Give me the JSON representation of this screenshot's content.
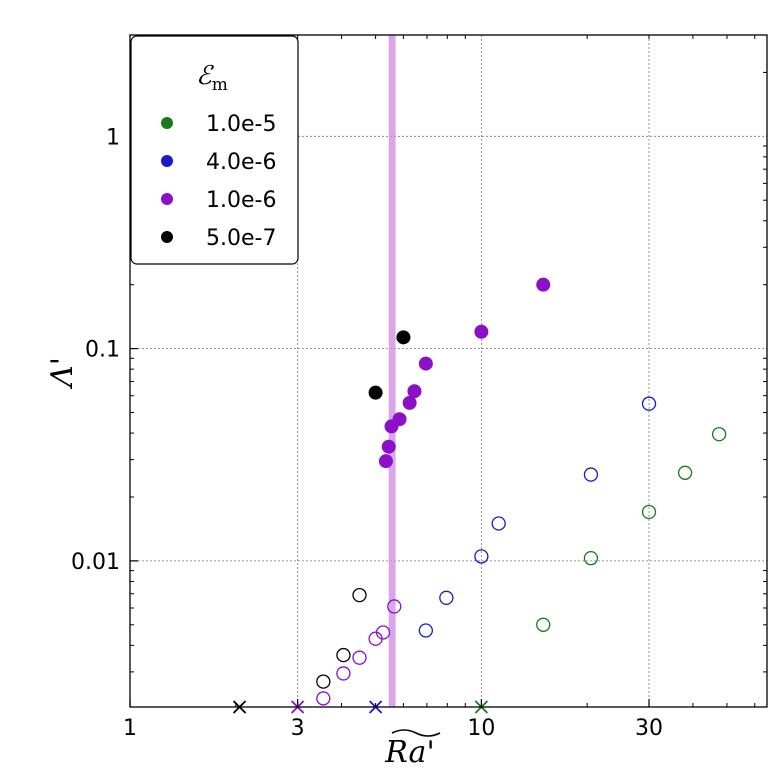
{
  "chart_data": {
    "type": "scatter",
    "xlabel": "Ra'",
    "ylabel": "Λ'",
    "x_scale": "log",
    "y_scale": "log",
    "xlim": [
      1,
      65
    ],
    "ylim": [
      0.00205,
      3
    ],
    "x_ticks": [
      {
        "value": 1,
        "label": "1"
      },
      {
        "value": 3,
        "label": "3"
      },
      {
        "value": 10,
        "label": "10"
      },
      {
        "value": 30,
        "label": "30"
      }
    ],
    "y_ticks": [
      {
        "value": 0.01,
        "label": "0.01"
      },
      {
        "value": 0.1,
        "label": "0.1"
      },
      {
        "value": 1,
        "label": "1"
      }
    ],
    "grid": true,
    "legend": {
      "title_main": "ℰ",
      "title_sub": "m",
      "placement": "top-left",
      "entries": [
        {
          "label": "1.0e-5",
          "color": "#1a7a1a"
        },
        {
          "label": "4.0e-6",
          "color": "#1a1acc"
        },
        {
          "label": "1.0e-6",
          "color": "#8b10c8"
        },
        {
          "label": "5.0e-7",
          "color": "#000000"
        }
      ]
    },
    "critical_band": {
      "x_from": 5.45,
      "x_to": 5.7,
      "color": "#cc88e8"
    },
    "series": [
      {
        "name": "1.0e-5",
        "color": "#1a7a1a",
        "filled": [],
        "open": [
          [
            15.0,
            0.005
          ],
          [
            20.5,
            0.0103
          ],
          [
            30.0,
            0.017
          ],
          [
            38.0,
            0.026
          ],
          [
            47.5,
            0.0395
          ]
        ],
        "onset": [
          [
            10.0,
            0.00205
          ]
        ]
      },
      {
        "name": "4.0e-6",
        "color": "#1a1acc",
        "filled": [],
        "open": [
          [
            6.95,
            0.0047
          ],
          [
            7.95,
            0.0067
          ],
          [
            10.0,
            0.0105
          ],
          [
            11.2,
            0.015
          ],
          [
            20.5,
            0.0255
          ],
          [
            30.0,
            0.055
          ]
        ],
        "onset": [
          [
            5.0,
            0.00205
          ]
        ]
      },
      {
        "name": "1.0e-6",
        "color": "#8b10c8",
        "filled": [
          [
            5.35,
            0.0295
          ],
          [
            5.45,
            0.0345
          ],
          [
            5.55,
            0.043
          ],
          [
            5.85,
            0.0465
          ],
          [
            6.25,
            0.0555
          ],
          [
            6.45,
            0.063
          ],
          [
            6.95,
            0.085
          ],
          [
            10.0,
            0.12
          ],
          [
            15.0,
            0.2
          ]
        ],
        "open": [
          [
            3.55,
            0.00225
          ],
          [
            4.05,
            0.00295
          ],
          [
            4.5,
            0.0035
          ],
          [
            5.0,
            0.0043
          ],
          [
            5.25,
            0.0046
          ],
          [
            5.65,
            0.0061
          ]
        ],
        "onset": [
          [
            3.0,
            0.00205
          ]
        ]
      },
      {
        "name": "5.0e-7",
        "color": "#000000",
        "filled": [
          [
            5.0,
            0.062
          ],
          [
            6.0,
            0.113
          ]
        ],
        "open": [
          [
            3.55,
            0.0027
          ],
          [
            4.05,
            0.0036
          ],
          [
            4.5,
            0.0069
          ]
        ],
        "onset": [
          [
            2.05,
            0.00205
          ]
        ]
      }
    ]
  }
}
